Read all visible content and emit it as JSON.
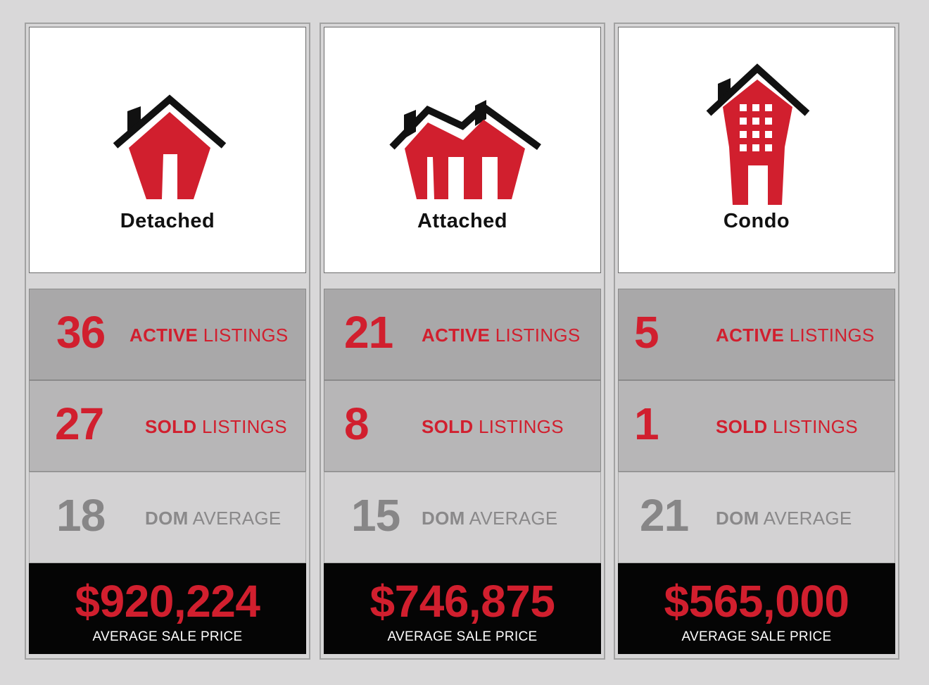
{
  "colors": {
    "background": "#d9d8d9",
    "accent_red": "#d11f2e",
    "dark_gray_text": "#878687",
    "price_bar": "#050505"
  },
  "columns": [
    {
      "title": "Detached",
      "icon": "detached-house-icon",
      "active": {
        "value": "36",
        "label_strong": "ACTIVE",
        "label_rest": "LISTINGS"
      },
      "sold": {
        "value": "27",
        "label_strong": "SOLD",
        "label_rest": "LISTINGS"
      },
      "dom": {
        "value": "18",
        "label_strong": "DOM",
        "label_rest": "AVERAGE"
      },
      "price": {
        "value": "$920,224",
        "label": "AVERAGE SALE PRICE"
      }
    },
    {
      "title": "Attached",
      "icon": "attached-house-icon",
      "active": {
        "value": "21",
        "label_strong": "ACTIVE",
        "label_rest": "LISTINGS"
      },
      "sold": {
        "value": "8",
        "label_strong": "SOLD",
        "label_rest": "LISTINGS"
      },
      "dom": {
        "value": "15",
        "label_strong": "DOM",
        "label_rest": "AVERAGE"
      },
      "price": {
        "value": "$746,875",
        "label": "AVERAGE SALE PRICE"
      }
    },
    {
      "title": "Condo",
      "icon": "condo-building-icon",
      "active": {
        "value": "5",
        "label_strong": "ACTIVE",
        "label_rest": "LISTINGS"
      },
      "sold": {
        "value": "1",
        "label_strong": "SOLD",
        "label_rest": "LISTINGS"
      },
      "dom": {
        "value": "21",
        "label_strong": "DOM",
        "label_rest": "AVERAGE"
      },
      "price": {
        "value": "$565,000",
        "label": "AVERAGE SALE PRICE"
      }
    }
  ]
}
